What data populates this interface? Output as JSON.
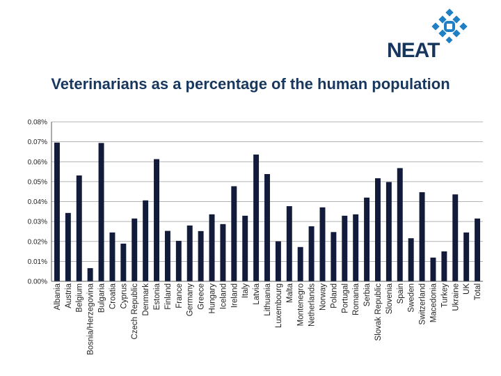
{
  "logo": {
    "text": "NEAT",
    "icon": "neat-logo-icon",
    "color": "#17365d",
    "accent": "#1f7fc4"
  },
  "chart_data": {
    "type": "bar",
    "title": "Veterinarians as a percentage of the human population",
    "xlabel": "",
    "ylabel": "",
    "ylim": [
      0,
      0.08
    ],
    "yticks": [
      0,
      0.01,
      0.02,
      0.03,
      0.04,
      0.05,
      0.06,
      0.07,
      0.08
    ],
    "ytick_labels": [
      "0.00%",
      "0.01%",
      "0.02%",
      "0.03%",
      "0.04%",
      "0.05%",
      "0.06%",
      "0.07%",
      "0.08%"
    ],
    "grid": true,
    "bar_color": "#131b3a",
    "categories": [
      "Albania",
      "Austria",
      "Belgium",
      "Bosnia/Herzegovina",
      "Bulgaria",
      "Croatia",
      "Cyprus",
      "Czech Republic",
      "Denmark",
      "Estonia",
      "Finland",
      "France",
      "Germany",
      "Greece",
      "Hungary",
      "Iceland",
      "Ireland",
      "Italy",
      "Latvia",
      "Lithuania",
      "Luxembourg",
      "Malta",
      "Montenegro",
      "Netherlands",
      "Norway",
      "Poland",
      "Portugal",
      "Romania",
      "Serbia",
      "Slovak Republic",
      "Slovenia",
      "Spain",
      "Sweden",
      "Switzerland",
      "Macedonia",
      "Turkey",
      "Ukraine",
      "UK",
      "Total"
    ],
    "values": [
      0.0696,
      0.0343,
      0.0531,
      0.0066,
      0.0694,
      0.0245,
      0.0189,
      0.0315,
      0.0406,
      0.0613,
      0.0253,
      0.0203,
      0.028,
      0.0252,
      0.0336,
      0.0287,
      0.0477,
      0.0329,
      0.0636,
      0.0538,
      0.0201,
      0.0377,
      0.0172,
      0.0276,
      0.0371,
      0.0247,
      0.0329,
      0.0336,
      0.042,
      0.0517,
      0.0498,
      0.0568,
      0.0216,
      0.0447,
      0.0119,
      0.015,
      0.0436,
      0.0245,
      0.0315
    ]
  }
}
